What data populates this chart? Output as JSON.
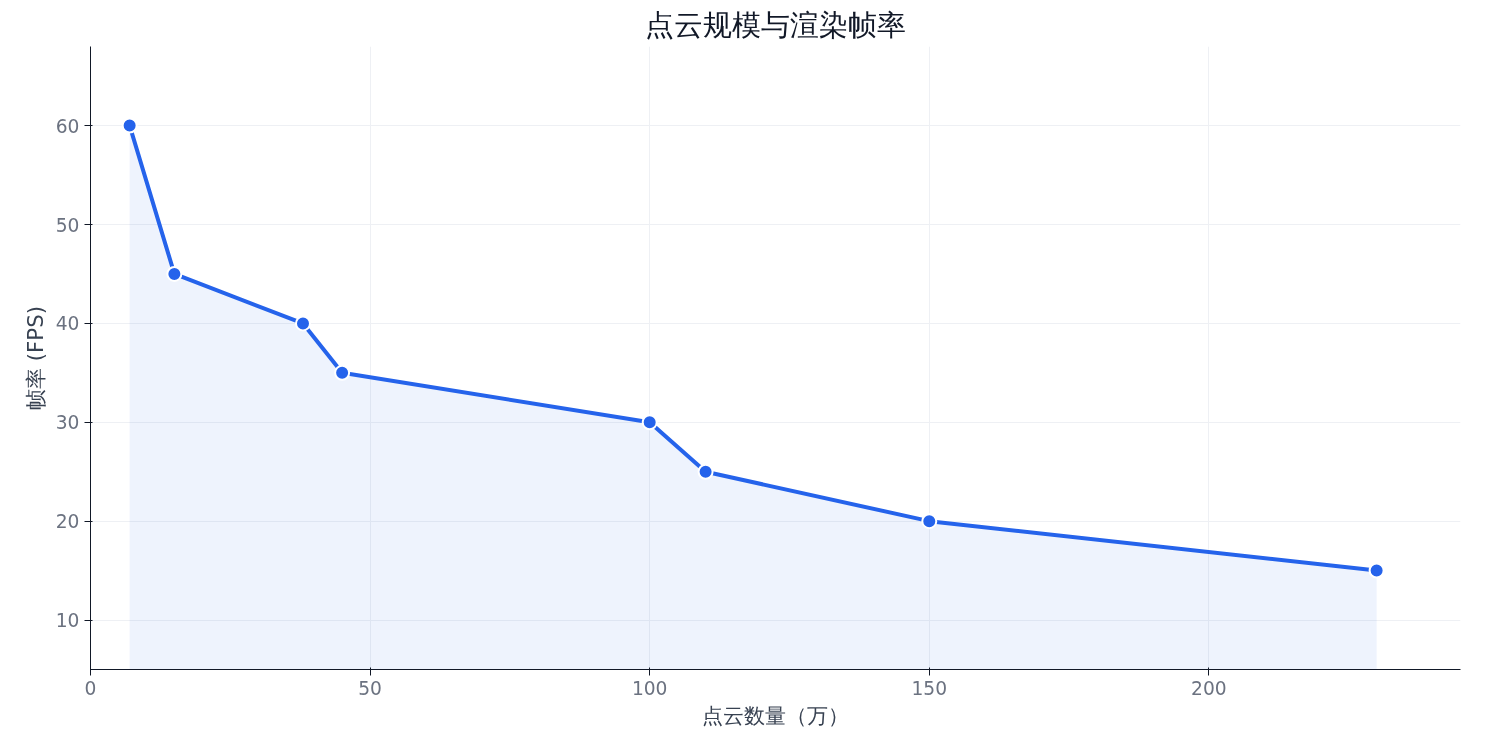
{
  "chart_data": {
    "type": "area",
    "title": "点云规模与渲染帧率",
    "xlabel": "点云数量（万）",
    "ylabel": "帧率 (FPS)",
    "x": [
      7,
      15,
      38,
      45,
      100,
      110,
      150,
      230
    ],
    "series": [
      {
        "color": "#2563eb",
        "values": [
          60,
          45,
          40,
          35,
          30,
          25,
          20,
          15
        ]
      }
    ],
    "xlim": [
      0,
      245
    ],
    "xticks": [
      0,
      50,
      100,
      150,
      200
    ],
    "ylim": [
      5,
      68
    ],
    "yticks": [
      10,
      20,
      30,
      40,
      50,
      60
    ],
    "grid": true,
    "marker": "circle",
    "line_style": "solid"
  }
}
